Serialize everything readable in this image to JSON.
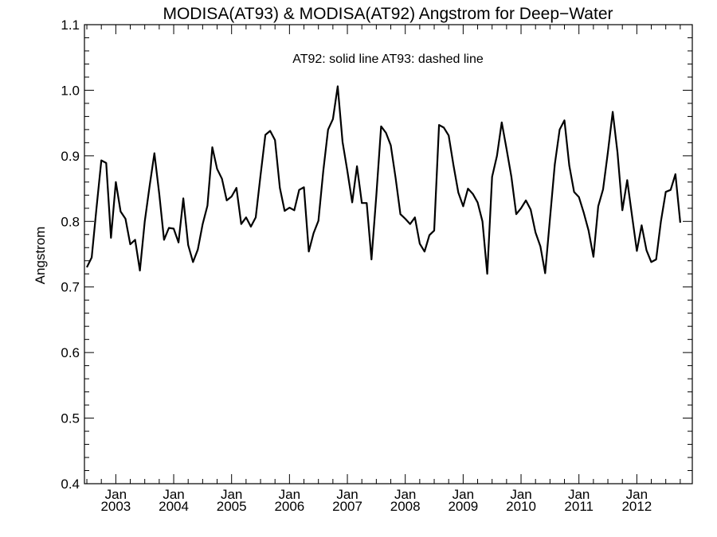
{
  "chart_data": {
    "type": "line",
    "title": "MODISA(AT93) & MODISA(AT92)  Angstrom for Deep−Water",
    "annotation": "AT92: solid line   AT93: dashed line",
    "xlabel": "",
    "ylabel": "Angstrom",
    "ylim": [
      0.4,
      1.1
    ],
    "y_ticks": [
      0.4,
      0.5,
      0.6,
      0.7,
      0.8,
      0.9,
      1.0,
      1.1
    ],
    "y_tick_labels": [
      "0.4",
      "0.5",
      "0.6",
      "0.7",
      "0.8",
      "0.9",
      "1.0",
      "1.1"
    ],
    "x_range": [
      "2002-07",
      "2012-12"
    ],
    "x_ticks": [
      {
        "month": "Jan",
        "year": "2003",
        "date": "2003-01"
      },
      {
        "month": "Jan",
        "year": "2004",
        "date": "2004-01"
      },
      {
        "month": "Jan",
        "year": "2005",
        "date": "2005-01"
      },
      {
        "month": "Jan",
        "year": "2006",
        "date": "2006-01"
      },
      {
        "month": "Jan",
        "year": "2007",
        "date": "2007-01"
      },
      {
        "month": "Jan",
        "year": "2008",
        "date": "2008-01"
      },
      {
        "month": "Jan",
        "year": "2009",
        "date": "2009-01"
      },
      {
        "month": "Jan",
        "year": "2010",
        "date": "2010-01"
      },
      {
        "month": "Jan",
        "year": "2011",
        "date": "2011-01"
      },
      {
        "month": "Jan",
        "year": "2012",
        "date": "2012-01"
      }
    ],
    "grid": false,
    "series": [
      {
        "name": "AT92",
        "line_style": "solid",
        "color": "#000000",
        "start": "2002-07",
        "values": [
          0.73,
          0.745,
          0.82,
          0.893,
          0.889,
          0.775,
          0.86,
          0.815,
          0.804,
          0.765,
          0.772,
          0.725,
          0.8,
          0.854,
          0.904,
          0.842,
          0.772,
          0.79,
          0.789,
          0.768,
          0.835,
          0.764,
          0.738,
          0.757,
          0.796,
          0.824,
          0.913,
          0.88,
          0.865,
          0.832,
          0.838,
          0.851,
          0.796,
          0.806,
          0.792,
          0.806,
          0.87,
          0.932,
          0.938,
          0.924,
          0.851,
          0.816,
          0.821,
          0.817,
          0.848,
          0.852,
          0.754,
          0.782,
          0.801,
          0.877,
          0.94,
          0.956,
          1.006,
          0.921,
          0.877,
          0.829,
          0.884,
          0.828,
          0.828,
          0.742,
          0.84,
          0.945,
          0.935,
          0.916,
          0.866,
          0.811,
          0.804,
          0.796,
          0.806,
          0.766,
          0.754,
          0.779,
          0.786,
          0.947,
          0.943,
          0.931,
          0.885,
          0.844,
          0.823,
          0.85,
          0.842,
          0.829,
          0.8,
          0.72,
          0.868,
          0.9,
          0.951,
          0.91,
          0.868,
          0.811,
          0.82,
          0.832,
          0.818,
          0.783,
          0.762,
          0.721,
          0.805,
          0.887,
          0.94,
          0.954,
          0.885,
          0.845,
          0.837,
          0.813,
          0.786,
          0.746,
          0.823,
          0.849,
          0.905,
          0.967,
          0.905,
          0.817,
          0.863,
          0.809,
          0.755,
          0.794,
          0.756,
          0.738,
          0.742,
          0.8,
          0.845,
          0.848,
          0.872,
          0.798
        ]
      }
    ]
  }
}
